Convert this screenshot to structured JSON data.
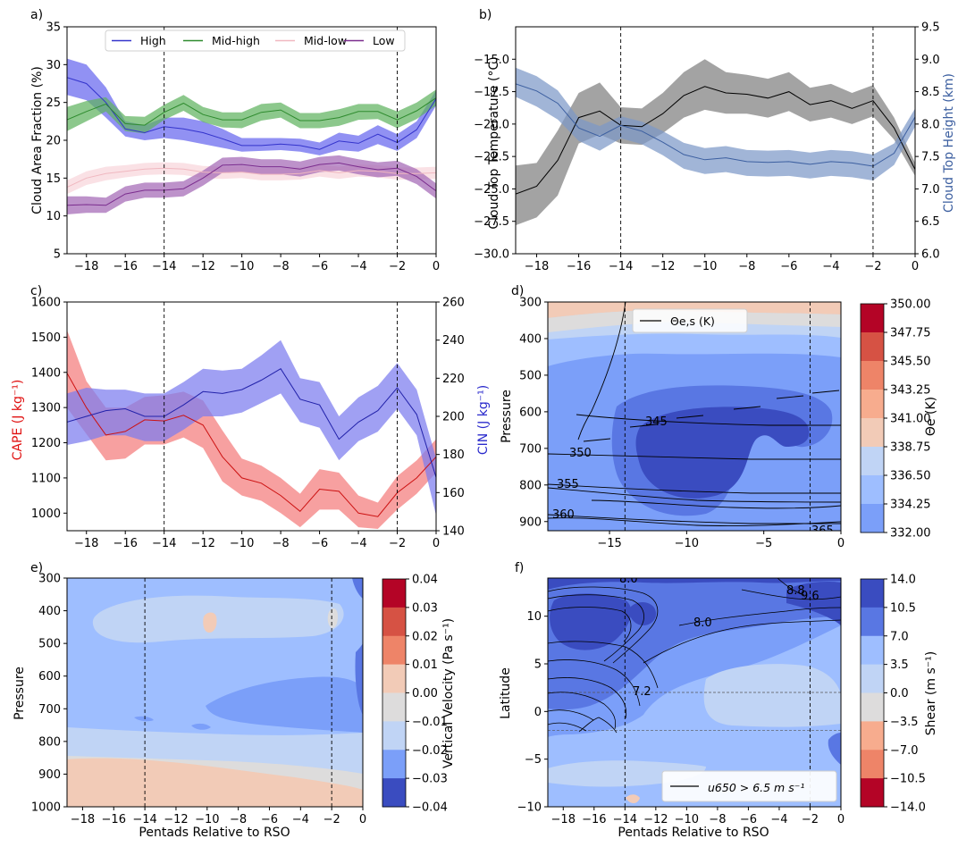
{
  "x_pentads": [
    -19,
    -18,
    -17,
    -16,
    -15,
    -14,
    -13,
    -12,
    -11,
    -10,
    -9,
    -8,
    -7,
    -6,
    -5,
    -4,
    -3,
    -2,
    -1,
    0
  ],
  "chart_data": [
    {
      "panel": "a)",
      "type": "line",
      "ylabel": "Cloud Area Fraction (%)",
      "xlim": [
        -19,
        0
      ],
      "ylim": [
        5,
        35
      ],
      "xticks": [
        -18,
        -16,
        -14,
        -12,
        -10,
        -8,
        -6,
        -4,
        -2,
        0
      ],
      "yticks": [
        5,
        10,
        15,
        20,
        25,
        30,
        35
      ],
      "vlines": [
        -14,
        -2
      ],
      "legend": "top",
      "series": [
        {
          "name": "High",
          "color": "#3333cc",
          "band": "#6666ee",
          "values": [
            28.3,
            27.5,
            25.0,
            21.5,
            21.0,
            21.8,
            21.5,
            21.0,
            20.2,
            19.3,
            19.3,
            19.5,
            19.3,
            18.8,
            19.9,
            19.6,
            20.8,
            19.7,
            21.4,
            25.5
          ],
          "lower": [
            26.0,
            25.3,
            23.0,
            20.5,
            20.0,
            20.3,
            20.0,
            19.5,
            19.0,
            18.5,
            18.6,
            18.7,
            18.5,
            18.0,
            18.7,
            18.5,
            19.5,
            18.6,
            20.3,
            24.6
          ],
          "upper": [
            30.8,
            30.0,
            27.0,
            22.5,
            22.0,
            23.0,
            23.0,
            22.5,
            21.5,
            20.3,
            20.3,
            20.3,
            20.2,
            19.7,
            21.0,
            20.6,
            22.0,
            20.8,
            22.5,
            26.6
          ]
        },
        {
          "name": "Mid-high",
          "color": "#2e8b2e",
          "band": "#5fb35f",
          "values": [
            22.7,
            23.8,
            24.8,
            22.2,
            22.0,
            23.7,
            24.9,
            23.4,
            22.7,
            22.7,
            23.7,
            24.0,
            22.6,
            22.6,
            23.0,
            23.8,
            23.8,
            22.7,
            23.9,
            25.6
          ],
          "lower": [
            21.2,
            22.5,
            23.8,
            21.2,
            20.9,
            22.7,
            23.9,
            22.4,
            21.7,
            21.6,
            22.6,
            23.0,
            21.6,
            21.6,
            21.9,
            22.7,
            22.8,
            21.6,
            22.8,
            24.6
          ],
          "upper": [
            24.4,
            25.2,
            25.7,
            23.2,
            23.1,
            24.7,
            26.0,
            24.4,
            23.7,
            23.7,
            24.8,
            25.0,
            23.6,
            23.6,
            24.1,
            24.8,
            24.8,
            23.8,
            25.0,
            26.7
          ]
        },
        {
          "name": "Mid-low",
          "color": "#f0b8c0",
          "band": "#f8d6db",
          "values": [
            13.8,
            15.0,
            15.6,
            15.9,
            16.2,
            16.3,
            16.2,
            15.8,
            15.7,
            15.8,
            15.5,
            15.5,
            15.6,
            16.0,
            15.7,
            16.0,
            15.9,
            15.6,
            15.6,
            15.7
          ],
          "lower": [
            12.9,
            14.1,
            14.7,
            15.1,
            15.4,
            15.5,
            15.4,
            15.0,
            14.9,
            15.0,
            14.7,
            14.7,
            14.8,
            15.2,
            14.9,
            15.2,
            15.1,
            14.8,
            14.8,
            14.9
          ],
          "upper": [
            14.7,
            15.9,
            16.5,
            16.7,
            17.0,
            17.1,
            17.0,
            16.6,
            16.5,
            16.6,
            16.3,
            16.3,
            16.4,
            16.8,
            16.5,
            16.8,
            16.7,
            16.4,
            16.4,
            16.5
          ]
        },
        {
          "name": "Low",
          "color": "#7b2d8e",
          "band": "#a468b5",
          "values": [
            11.4,
            11.5,
            11.4,
            12.9,
            13.4,
            13.4,
            13.6,
            15.0,
            16.7,
            16.8,
            16.5,
            16.5,
            16.2,
            16.8,
            17.0,
            16.5,
            16.1,
            16.3,
            15.2,
            13.3
          ],
          "lower": [
            10.2,
            10.4,
            10.4,
            11.9,
            12.4,
            12.4,
            12.6,
            14.0,
            15.7,
            15.8,
            15.5,
            15.5,
            15.2,
            15.8,
            16.0,
            15.5,
            15.1,
            15.3,
            14.2,
            12.3
          ],
          "upper": [
            12.6,
            12.6,
            12.4,
            13.9,
            14.4,
            14.4,
            14.6,
            16.0,
            17.7,
            17.8,
            17.5,
            17.5,
            17.2,
            17.8,
            18.0,
            17.5,
            17.1,
            17.3,
            16.2,
            14.3
          ]
        }
      ]
    },
    {
      "panel": "b)",
      "type": "line",
      "ylabel": "Cloud Top Temperature (°C)",
      "ylabel_right": "Cloud Top Height (km)",
      "xlim": [
        -19,
        0
      ],
      "ylim": [
        -30,
        -12.5
      ],
      "ylim_right": [
        6.0,
        9.5
      ],
      "xticks": [
        -18,
        -16,
        -14,
        -12,
        -10,
        -8,
        -6,
        -4,
        -2,
        0
      ],
      "yticks": [
        -30.0,
        -27.5,
        -25.0,
        -22.5,
        -20.0,
        -17.5,
        -15.0
      ],
      "yticks_labels": [
        "−30.0",
        "−27.5",
        "−25.0",
        "−22.5",
        "−20.0",
        "−17.5",
        "−15.0"
      ],
      "yticks_right": [
        "6.0",
        "6.5",
        "7.0",
        "7.5",
        "8.0",
        "8.5",
        "9.0",
        "9.5"
      ],
      "vlines": [
        -14,
        -2
      ],
      "series": [
        {
          "name": "",
          "axis": "left",
          "color": "#000000",
          "band": "#808080",
          "values": [
            -25.4,
            -24.8,
            -22.8,
            -19.5,
            -19.0,
            -20.1,
            -20.2,
            -19.2,
            -17.8,
            -17.1,
            -17.6,
            -17.7,
            -18.0,
            -17.5,
            -18.5,
            -18.2,
            -18.8,
            -18.2,
            -20.3,
            -23.5
          ],
          "lower": [
            -27.8,
            -27.2,
            -25.5,
            -21.5,
            -20.8,
            -21.5,
            -21.6,
            -20.7,
            -19.5,
            -18.9,
            -19.2,
            -19.2,
            -19.5,
            -19.0,
            -19.8,
            -19.5,
            -20.0,
            -19.4,
            -21.2,
            -24.0
          ],
          "upper": [
            -23.2,
            -23.0,
            -20.5,
            -17.6,
            -16.8,
            -18.7,
            -18.8,
            -17.6,
            -16.0,
            -15.0,
            -16.0,
            -16.2,
            -16.5,
            -16.0,
            -17.2,
            -16.9,
            -17.6,
            -17.0,
            -19.5,
            -23.0
          ]
        },
        {
          "name": "",
          "axis": "right",
          "color": "#3c5fa0",
          "band": "#7d98c8",
          "values": [
            8.62,
            8.51,
            8.32,
            7.94,
            7.81,
            7.98,
            7.89,
            7.72,
            7.53,
            7.45,
            7.48,
            7.42,
            7.41,
            7.42,
            7.38,
            7.42,
            7.4,
            7.35,
            7.55,
            8.11
          ],
          "lower": [
            8.42,
            8.27,
            8.07,
            7.74,
            7.59,
            7.78,
            7.69,
            7.52,
            7.31,
            7.23,
            7.26,
            7.2,
            7.19,
            7.2,
            7.16,
            7.2,
            7.18,
            7.13,
            7.37,
            7.96
          ],
          "upper": [
            8.87,
            8.74,
            8.52,
            8.09,
            7.97,
            8.12,
            8.04,
            7.89,
            7.71,
            7.63,
            7.66,
            7.6,
            7.59,
            7.6,
            7.56,
            7.6,
            7.58,
            7.53,
            7.7,
            8.24
          ]
        }
      ]
    },
    {
      "panel": "c)",
      "type": "line",
      "ylabel": "CAPE (J kg⁻¹)",
      "ylabel_right": "CIN (J kg⁻¹)",
      "xlim": [
        -19,
        0
      ],
      "ylim": [
        950,
        1600
      ],
      "ylim_right": [
        140,
        260
      ],
      "xticks": [
        -18,
        -16,
        -14,
        -12,
        -10,
        -8,
        -6,
        -4,
        -2,
        0
      ],
      "yticks": [
        1000,
        1100,
        1200,
        1300,
        1400,
        1500,
        1600
      ],
      "yticks_right": [
        140,
        160,
        180,
        200,
        220,
        240,
        260
      ],
      "vlines": [
        -14,
        -2
      ],
      "series": [
        {
          "name": "",
          "axis": "left",
          "color": "#cc1111",
          "band": "#f47c7c",
          "values": [
            1398,
            1300,
            1222,
            1232,
            1265,
            1262,
            1278,
            1250,
            1160,
            1100,
            1085,
            1050,
            1005,
            1068,
            1062,
            1000,
            990,
            1058,
            1100,
            1160
          ],
          "lower": [
            1300,
            1225,
            1150,
            1155,
            1195,
            1195,
            1215,
            1185,
            1090,
            1050,
            1035,
            1000,
            960,
            1010,
            1010,
            960,
            955,
            1010,
            1055,
            1115
          ],
          "upper": [
            1520,
            1375,
            1300,
            1300,
            1330,
            1335,
            1345,
            1320,
            1235,
            1155,
            1135,
            1100,
            1055,
            1125,
            1115,
            1050,
            1030,
            1105,
            1150,
            1210
          ]
        },
        {
          "name": "",
          "axis": "right",
          "color": "#2222aa",
          "band": "#7b7bef",
          "values": [
            197,
            200,
            203,
            204,
            200,
            200,
            206,
            213,
            212,
            214,
            219,
            225,
            209,
            206,
            188,
            197,
            203,
            215,
            201,
            168
          ],
          "lower": [
            185,
            187,
            190,
            190,
            187,
            187,
            193,
            200,
            200,
            202,
            207,
            212,
            197,
            194,
            177,
            187,
            192,
            204,
            190,
            148
          ],
          "upper": [
            212,
            215,
            214,
            214,
            212,
            212,
            218,
            225,
            224,
            225,
            232,
            240,
            220,
            218,
            200,
            210,
            216,
            228,
            214,
            178
          ]
        }
      ]
    },
    {
      "panel": "d)",
      "type": "heatmap",
      "ylabel": "Pressure",
      "colorbar_label": "Θe (K)",
      "xlim": [
        -19,
        0
      ],
      "ylim": [
        925,
        300
      ],
      "xticks": [
        "−15",
        "−10",
        "−5",
        "0"
      ],
      "yticks": [
        300,
        400,
        500,
        600,
        700,
        800,
        900
      ],
      "vlines": [
        -14,
        -2
      ],
      "legend": "Θe,s (K)",
      "contour_levels_labeled": [
        "345",
        "350",
        "355",
        "360",
        "365"
      ],
      "colorbar_ticks": [
        "350.00",
        "347.75",
        "345.50",
        "343.25",
        "341.00",
        "338.75",
        "336.50",
        "334.25",
        "332.00"
      ]
    },
    {
      "panel": "e)",
      "type": "heatmap",
      "ylabel": "Pressure",
      "xlabel": "Pentads Relative to RSO",
      "colorbar_label": "Vertical Velocity (Pa s⁻¹)",
      "xlim": [
        -19,
        0
      ],
      "ylim": [
        1000,
        300
      ],
      "xticks": [
        -18,
        -16,
        -14,
        -12,
        -10,
        -8,
        -6,
        -4,
        -2,
        0
      ],
      "yticks": [
        300,
        400,
        500,
        600,
        700,
        800,
        900,
        1000
      ],
      "vlines": [
        -14,
        -2
      ],
      "colorbar_ticks": [
        "0.04",
        "0.03",
        "0.02",
        "0.01",
        "0.00",
        "−0.01",
        "−0.02",
        "−0.03",
        "−0.04"
      ]
    },
    {
      "panel": "f)",
      "type": "heatmap",
      "ylabel": "Latitude",
      "xlabel": "Pentads Relative to RSO",
      "colorbar_label": "Shear (m s⁻¹)",
      "xlim": [
        -19,
        0
      ],
      "ylim": [
        -10,
        14
      ],
      "xticks": [
        -18,
        -16,
        -14,
        -12,
        -10,
        -8,
        -6,
        -4,
        -2,
        0
      ],
      "yticks": [
        -10,
        -5,
        0,
        5,
        10
      ],
      "vlines": [
        -14,
        -2
      ],
      "hlines": [
        2,
        -2
      ],
      "contour_labels": [
        "8.0",
        "7.2",
        "8.8",
        "9.6",
        "8.0"
      ],
      "legend": "u650 > 6.5 m s⁻¹",
      "colorbar_ticks": [
        "14.0",
        "10.5",
        "7.0",
        "3.5",
        "0.0",
        "−3.5",
        "−7.0",
        "−10.5",
        "−14.0"
      ]
    }
  ],
  "palette": {
    "div": [
      "#3a4cc0",
      "#5977e3",
      "#7b9ff9",
      "#9ebeff",
      "#c0d4f5",
      "#dddcdc",
      "#f2cbb7",
      "#f7ac8e",
      "#ee8468",
      "#d65244",
      "#b40426"
    ]
  }
}
